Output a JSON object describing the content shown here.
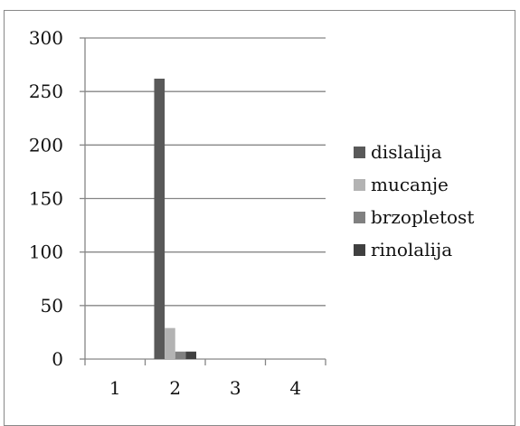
{
  "chart_data": {
    "type": "bar",
    "title": "",
    "xlabel": "",
    "ylabel": "",
    "categories": [
      "1",
      "2",
      "3",
      "4"
    ],
    "ylim": [
      0,
      300
    ],
    "yticks": [
      0,
      50,
      100,
      150,
      200,
      250,
      300
    ],
    "grid": true,
    "legend_position": "right",
    "series": [
      {
        "name": "dislalija",
        "color": "#595959",
        "values": [
          0,
          262,
          0,
          0
        ]
      },
      {
        "name": "mucanje",
        "color": "#b3b3b3",
        "values": [
          0,
          29,
          0,
          0
        ]
      },
      {
        "name": "brzopletost",
        "color": "#808080",
        "values": [
          0,
          7,
          0,
          0
        ]
      },
      {
        "name": "rinolalija",
        "color": "#404040",
        "values": [
          0,
          7,
          0,
          0
        ]
      }
    ]
  }
}
